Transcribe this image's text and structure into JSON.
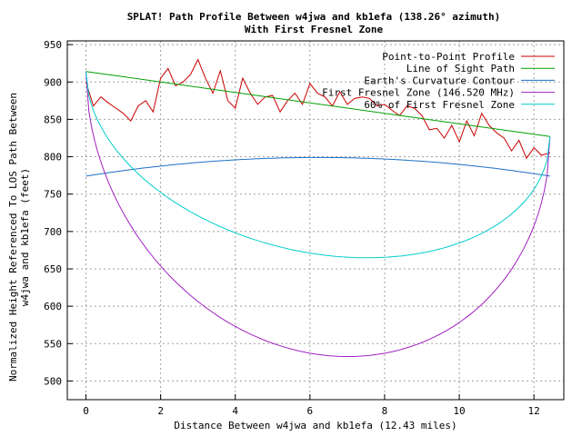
{
  "chart_data": {
    "type": "line",
    "title": "SPLAT! Path Profile Between w4jwa and kb1efa (138.26° azimuth)",
    "subtitle": "With First Fresnel Zone",
    "xlabel": "Distance Between w4jwa and kb1efa (12.43 miles)",
    "ylabel_line1": "Normalized Height Referenced To LOS Path Between",
    "ylabel_line2": "w4jwa and kb1efa (feet)",
    "xlim": [
      -0.5,
      12.8
    ],
    "ylim": [
      475,
      955
    ],
    "xticks": [
      "0",
      "2",
      "4",
      "6",
      "8",
      "10",
      "12"
    ],
    "yticks": [
      "500",
      "550",
      "600",
      "650",
      "700",
      "750",
      "800",
      "850",
      "900",
      "950"
    ],
    "grid": true,
    "legend_position": "top-right",
    "path_length_miles": 12.43,
    "series": [
      {
        "name": "Point-to-Point Profile",
        "color": "#cc0000",
        "x": [
          0,
          0.2,
          0.4,
          0.6,
          0.8,
          1.0,
          1.2,
          1.4,
          1.6,
          1.8,
          2.0,
          2.2,
          2.4,
          2.6,
          2.8,
          3.0,
          3.2,
          3.4,
          3.6,
          3.8,
          4.0,
          4.2,
          4.4,
          4.6,
          4.8,
          5.0,
          5.2,
          5.4,
          5.6,
          5.8,
          6.0,
          6.2,
          6.4,
          6.6,
          6.8,
          7.0,
          7.2,
          7.4,
          7.6,
          7.8,
          8.0,
          8.2,
          8.4,
          8.6,
          8.8,
          9.0,
          9.2,
          9.4,
          9.6,
          9.8,
          10.0,
          10.2,
          10.4,
          10.6,
          10.8,
          11.0,
          11.2,
          11.4,
          11.6,
          11.8,
          12.0,
          12.2,
          12.43
        ],
        "y": [
          900,
          868,
          880,
          872,
          865,
          858,
          848,
          868,
          875,
          860,
          905,
          918,
          895,
          900,
          910,
          930,
          905,
          885,
          915,
          875,
          865,
          905,
          885,
          870,
          880,
          882,
          860,
          875,
          885,
          870,
          898,
          885,
          880,
          868,
          887,
          870,
          878,
          880,
          878,
          868,
          870,
          862,
          855,
          868,
          865,
          855,
          836,
          838,
          825,
          842,
          820,
          848,
          828,
          858,
          842,
          832,
          825,
          808,
          822,
          798,
          812,
          802,
          805
        ],
        "smooth": false
      },
      {
        "name": "Line of Sight Path",
        "color": "#00a000",
        "x": [
          0,
          12.43
        ],
        "y": [
          914,
          827
        ]
      },
      {
        "name": "Earth's Curvature Contour",
        "color": "#1a6fc4",
        "curve": "earth",
        "x": [
          0,
          12.43
        ],
        "endpoint_heights": [
          774,
          774
        ],
        "midspan_bulge_feet": 25
      },
      {
        "name": "First Fresnel Zone (146.520 MHz)",
        "color": "#a020c0",
        "curve": "fresnel",
        "zone_fraction": 1.0,
        "midspan_radius_feet": 335
      },
      {
        "name": "60% of First Fresnel Zone",
        "color": "#00cccc",
        "curve": "fresnel",
        "zone_fraction": 0.6,
        "midspan_radius_feet": 201
      }
    ]
  }
}
